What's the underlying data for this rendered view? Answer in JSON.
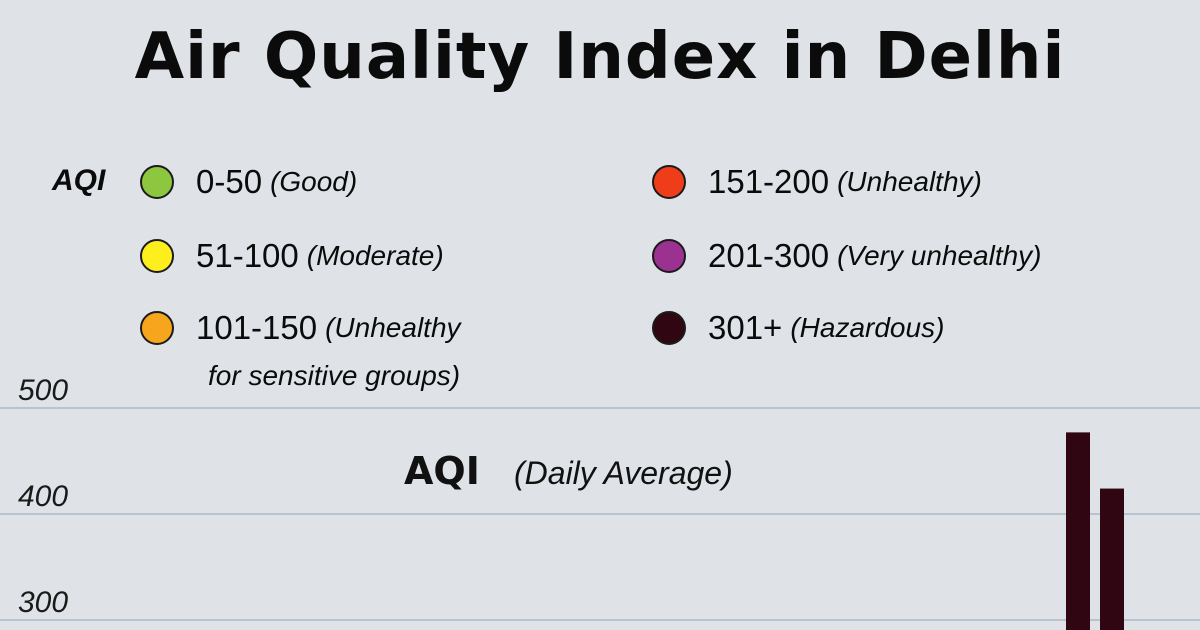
{
  "title": "Air Quality Index in Delhi",
  "legend": {
    "label": "AQI",
    "items": [
      {
        "range": "0-50",
        "desc": "(Good)",
        "color": "#8dc63f"
      },
      {
        "range": "51-100",
        "desc": "(Moderate)",
        "color": "#ffee1e"
      },
      {
        "range": "101-150",
        "desc": "(Unhealthy",
        "desc_line2": "for sensitive groups)",
        "color": "#f7a51c"
      },
      {
        "range": "151-200",
        "desc": "(Unhealthy)",
        "color": "#ee3d18"
      },
      {
        "range": "201-300",
        "desc": "(Very unhealthy)",
        "color": "#9b3190"
      },
      {
        "range": "301+",
        "desc": "(Hazardous)",
        "color": "#2f0612"
      }
    ]
  },
  "chart_data": {
    "type": "bar",
    "subtitle_main": "AQI",
    "subtitle_note": "(Daily Average)",
    "yticks": [
      500,
      400,
      300
    ],
    "values": [
      477,
      424
    ],
    "bar_color": "#2f0612",
    "gridline_color": "#b7c3cf",
    "grid": true
  }
}
